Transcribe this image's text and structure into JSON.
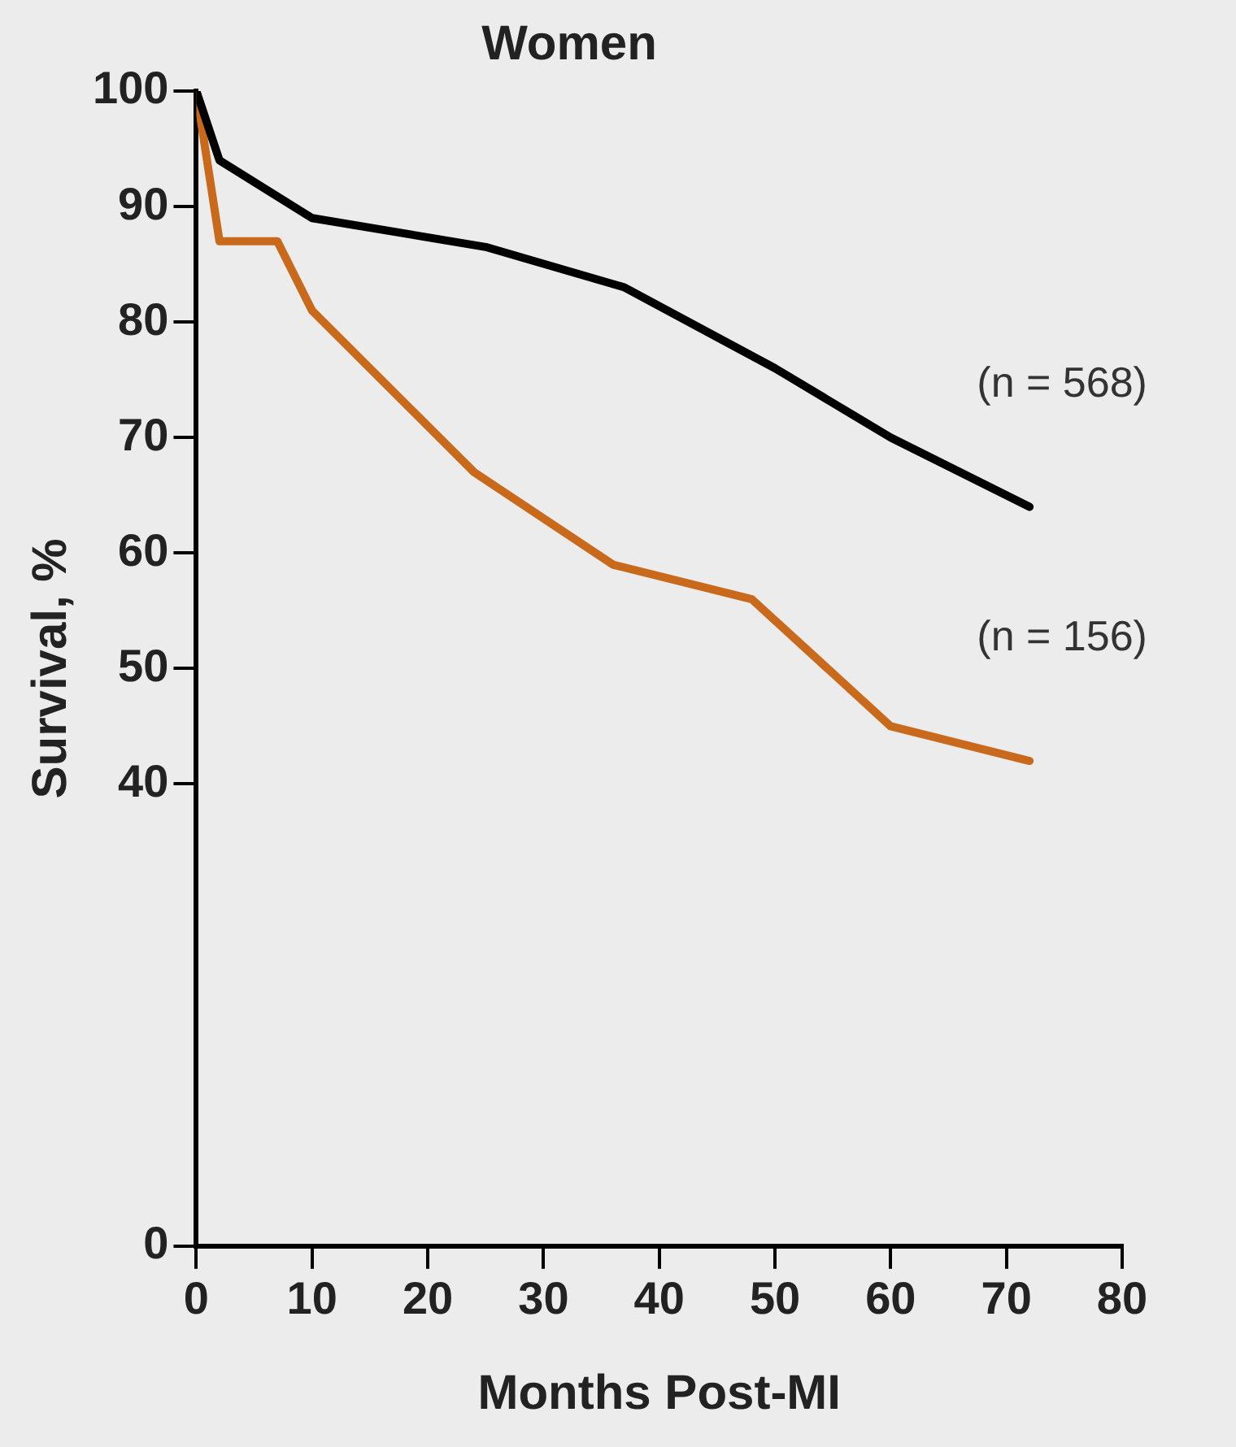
{
  "chart_data": {
    "type": "line",
    "title": "Women",
    "xlabel": "Months Post-MI",
    "ylabel": "Survival, %",
    "xlim": [
      0,
      80
    ],
    "xticks": [
      0,
      10,
      20,
      30,
      40,
      50,
      60,
      70,
      80
    ],
    "ylim": [
      0,
      100
    ],
    "yticks": [
      0,
      40,
      50,
      60,
      70,
      80,
      90,
      100
    ],
    "grid": false,
    "legend": false,
    "marker": "none",
    "line_style": "solid",
    "series": [
      {
        "color": "#000000",
        "x": [
          0,
          2,
          10,
          25,
          37,
          50,
          60,
          72
        ],
        "values": [
          100,
          94,
          89,
          86.5,
          83,
          76,
          70,
          64
        ]
      },
      {
        "color": "#c8691c",
        "x": [
          0,
          2,
          7,
          10,
          24,
          36,
          48,
          60,
          72
        ],
        "values": [
          100,
          87,
          87,
          81,
          67,
          59,
          56,
          45,
          42
        ]
      }
    ],
    "annotations": [
      "(n = 568)",
      "(n = 156)"
    ]
  }
}
